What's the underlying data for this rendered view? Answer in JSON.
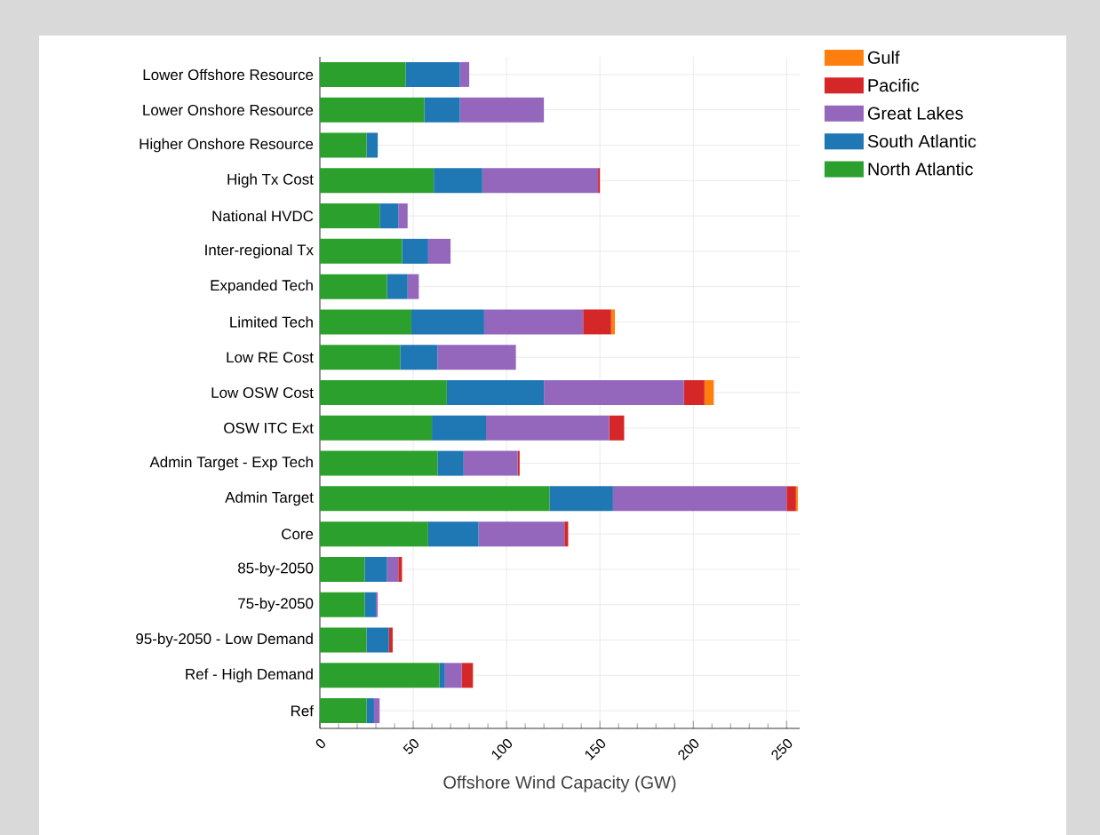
{
  "chart_data": {
    "type": "bar",
    "orientation": "horizontal",
    "stacked": true,
    "xlabel": "Offshore Wind Capacity (GW)",
    "categories": [
      "Lower Offshore Resource",
      "Lower Onshore Resource",
      "Higher Onshore Resource",
      "High Tx Cost",
      "National HVDC",
      "Inter-regional Tx",
      "Expanded Tech",
      "Limited Tech",
      "Low RE Cost",
      "Low OSW Cost",
      "OSW ITC Ext",
      "Admin Target - Exp Tech",
      "Admin Target",
      "Core",
      "85-by-2050",
      "75-by-2050",
      "95-by-2050 - Low Demand",
      "Ref - High Demand",
      "Ref"
    ],
    "series": [
      {
        "name": "North Atlantic",
        "color": "#2ca02c",
        "values": [
          46,
          56,
          25,
          61,
          32,
          44,
          36,
          49,
          43,
          68,
          60,
          63,
          123,
          58,
          24,
          24,
          25,
          64,
          25
        ]
      },
      {
        "name": "South Atlantic",
        "color": "#1f77b4",
        "values": [
          29,
          19,
          6,
          26,
          10,
          14,
          11,
          39,
          20,
          52,
          29,
          14,
          34,
          27,
          12,
          6,
          12,
          3,
          4
        ]
      },
      {
        "name": "Great Lakes",
        "color": "#9467bd",
        "values": [
          5,
          45,
          0,
          62,
          5,
          12,
          6,
          53,
          42,
          75,
          66,
          29,
          93,
          46,
          6,
          1,
          0,
          9,
          3
        ]
      },
      {
        "name": "Pacific",
        "color": "#d62728",
        "values": [
          0,
          0,
          0,
          1,
          0,
          0,
          0,
          15,
          0,
          11,
          8,
          1,
          5,
          2,
          2,
          0,
          2,
          6,
          0
        ]
      },
      {
        "name": "Gulf",
        "color": "#ff7f0e",
        "values": [
          0,
          0,
          0,
          0,
          0,
          0,
          0,
          2,
          0,
          5,
          0,
          0,
          1,
          0,
          0,
          0,
          0,
          0,
          0
        ]
      }
    ],
    "xlim": [
      0,
      257
    ],
    "xticks": [
      0,
      50,
      100,
      150,
      200,
      250
    ],
    "grid": true,
    "legend": "right"
  }
}
